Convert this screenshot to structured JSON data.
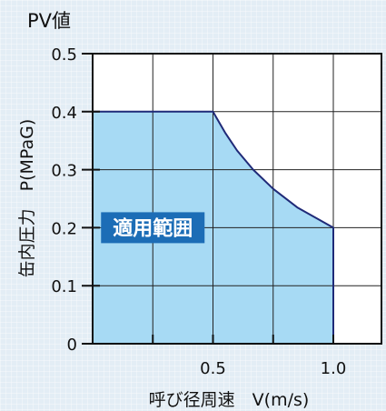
{
  "colors": {
    "fill": "#a7daf4",
    "outline": "#1f2a78",
    "label_bg": "#1c6db6",
    "label_text": "#ffffff"
  },
  "chart_data": {
    "type": "area",
    "title": "PV値",
    "xlabel": "呼び径周速　V(m/s)",
    "ylabel": "缶内圧力　P(MPaG)",
    "xlim": [
      0,
      1.2
    ],
    "ylim": [
      0,
      0.5
    ],
    "x_ticks": [
      0,
      0.25,
      0.5,
      0.75,
      1.0,
      1.25
    ],
    "x_tick_labels": [
      {
        "value": 0.5,
        "label": "0.5"
      },
      {
        "value": 1.0,
        "label": "1.0"
      }
    ],
    "y_ticks": [
      0,
      0.1,
      0.2,
      0.3,
      0.4,
      0.5
    ],
    "y_tick_labels": [
      {
        "value": 0,
        "label": "0"
      },
      {
        "value": 0.1,
        "label": "0.1"
      },
      {
        "value": 0.2,
        "label": "0.2"
      },
      {
        "value": 0.3,
        "label": "0.3"
      },
      {
        "value": 0.4,
        "label": "0.4"
      },
      {
        "value": 0.5,
        "label": "0.5"
      }
    ],
    "grid": true,
    "series": [
      {
        "x": [
          0,
          0.5,
          0.55,
          0.6,
          0.667,
          0.75,
          0.85,
          1.0,
          1.0
        ],
        "y": [
          0.4,
          0.4,
          0.364,
          0.333,
          0.3,
          0.267,
          0.235,
          0.2,
          0
        ]
      }
    ],
    "annotations": [
      {
        "text": "適用範囲",
        "x": 0.25,
        "y": 0.2
      }
    ]
  }
}
